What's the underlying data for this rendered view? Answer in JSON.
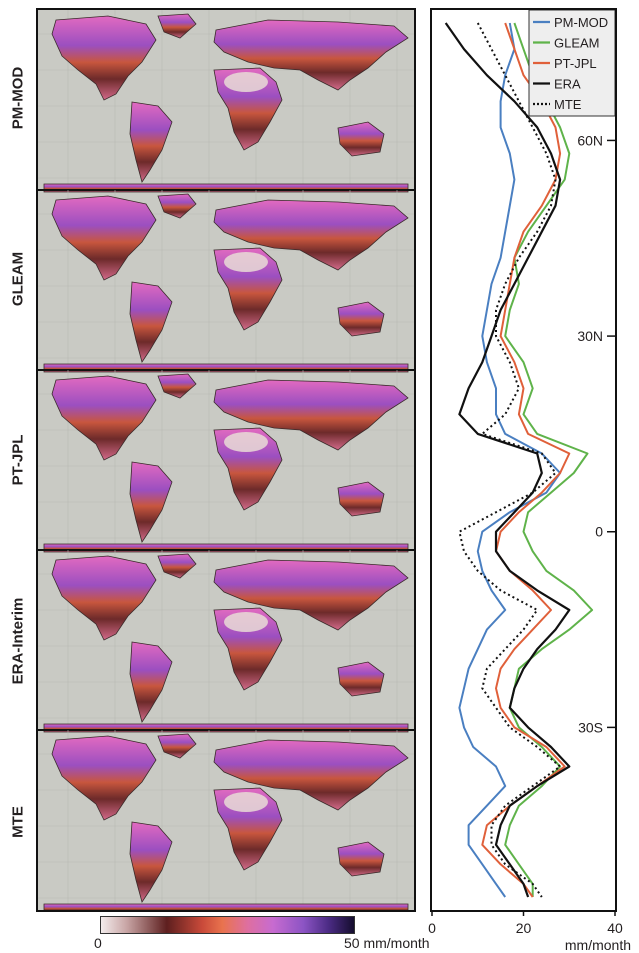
{
  "maps": {
    "labels": [
      "PM-MOD",
      "GLEAM",
      "PT-JPL",
      "ERA-Interim",
      "MTE"
    ],
    "ocean_color": "#c9cac4",
    "colorbar": {
      "min_label": "0",
      "max_label": "50 mm/month"
    }
  },
  "chart_data": {
    "type": "line",
    "orientation": "horizontal-profile",
    "xlabel": "mm/month",
    "xlim": [
      0,
      40
    ],
    "xticks": [
      "0",
      "20",
      "40"
    ],
    "ylim": [
      -58,
      80
    ],
    "yticks": [
      {
        "lat": 60,
        "label": "60N"
      },
      {
        "lat": 30,
        "label": "30N"
      },
      {
        "lat": 0,
        "label": "0"
      },
      {
        "lat": -30,
        "label": "30S"
      }
    ],
    "legend": "top-right",
    "series": [
      {
        "name": "PM-MOD",
        "color": "#4a7fc1",
        "style": "solid",
        "lat": [
          78,
          74,
          70,
          66,
          62,
          58,
          54,
          50,
          46,
          42,
          38,
          34,
          30,
          26,
          22,
          18,
          15,
          12,
          9,
          6,
          3,
          0,
          -3,
          -6,
          -9,
          -12,
          -15,
          -18,
          -21,
          -24,
          -27,
          -30,
          -33,
          -36,
          -39,
          -42,
          -45,
          -48,
          -51,
          -54,
          -56
        ],
        "et": [
          17,
          18,
          16,
          15,
          15,
          17,
          18,
          17,
          16,
          15,
          13,
          12,
          11,
          12,
          14,
          14,
          16,
          24,
          28,
          25,
          17,
          11,
          10,
          11,
          13,
          16,
          12,
          10,
          8,
          7,
          6,
          7,
          9,
          14,
          16,
          12,
          8,
          8,
          11,
          14,
          16
        ]
      },
      {
        "name": "GLEAM",
        "color": "#5fb34a",
        "style": "solid",
        "lat": [
          78,
          74,
          70,
          66,
          62,
          58,
          54,
          50,
          46,
          42,
          38,
          34,
          30,
          26,
          22,
          18,
          15,
          12,
          9,
          6,
          3,
          0,
          -3,
          -6,
          -9,
          -12,
          -15,
          -18,
          -21,
          -24,
          -27,
          -30,
          -33,
          -36,
          -39,
          -42,
          -45,
          -48,
          -51,
          -54,
          -56
        ],
        "et": [
          18,
          20,
          22,
          25,
          28,
          30,
          29,
          25,
          21,
          18,
          19,
          17,
          16,
          20,
          22,
          20,
          23,
          34,
          31,
          26,
          21,
          20,
          22,
          25,
          31,
          35,
          30,
          24,
          19,
          18,
          17,
          19,
          24,
          28,
          24,
          19,
          17,
          16,
          19,
          22,
          22
        ]
      },
      {
        "name": "PT-JPL",
        "color": "#e0603a",
        "style": "solid",
        "lat": [
          78,
          74,
          70,
          66,
          62,
          58,
          54,
          50,
          46,
          42,
          38,
          34,
          30,
          26,
          22,
          18,
          15,
          12,
          9,
          6,
          3,
          0,
          -3,
          -6,
          -9,
          -12,
          -15,
          -18,
          -21,
          -24,
          -27,
          -30,
          -33,
          -36,
          -39,
          -42,
          -45,
          -48,
          -51,
          -54,
          -56
        ],
        "et": [
          16,
          18,
          20,
          24,
          27,
          28,
          27,
          24,
          20,
          18,
          17,
          16,
          15,
          18,
          20,
          19,
          21,
          30,
          28,
          24,
          19,
          15,
          14,
          17,
          22,
          26,
          22,
          18,
          15,
          14,
          15,
          18,
          25,
          29,
          23,
          17,
          12,
          11,
          15,
          20,
          22
        ]
      },
      {
        "name": "ERA",
        "color": "#111111",
        "style": "solid",
        "lat": [
          78,
          74,
          70,
          66,
          62,
          58,
          54,
          50,
          46,
          42,
          38,
          34,
          30,
          26,
          22,
          18,
          15,
          12,
          9,
          6,
          3,
          0,
          -3,
          -6,
          -9,
          -12,
          -15,
          -18,
          -21,
          -24,
          -27,
          -30,
          -33,
          -36,
          -39,
          -42,
          -45,
          -48,
          -51,
          -54,
          -56
        ],
        "et": [
          3,
          7,
          12,
          18,
          23,
          26,
          28,
          27,
          24,
          21,
          18,
          15,
          13,
          11,
          8,
          6,
          10,
          23,
          24,
          22,
          18,
          14,
          14,
          17,
          23,
          30,
          27,
          23,
          20,
          18,
          17,
          21,
          26,
          30,
          23,
          17,
          15,
          14,
          17,
          20,
          21
        ]
      },
      {
        "name": "MTE",
        "color": "#111111",
        "style": "dotted",
        "lat": [
          78,
          74,
          70,
          66,
          62,
          58,
          54,
          50,
          46,
          42,
          38,
          34,
          30,
          26,
          22,
          18,
          15,
          12,
          9,
          6,
          3,
          0,
          -3,
          -6,
          -9,
          -12,
          -15,
          -18,
          -21,
          -24,
          -27,
          -30,
          -33,
          -36,
          -39,
          -42,
          -45,
          -48,
          -51,
          -54,
          -56
        ],
        "et": [
          10,
          13,
          16,
          19,
          22,
          25,
          27,
          26,
          23,
          19,
          16,
          14,
          14,
          17,
          19,
          16,
          11,
          24,
          27,
          22,
          14,
          6,
          7,
          10,
          15,
          23,
          20,
          16,
          12,
          11,
          14,
          17,
          23,
          28,
          22,
          16,
          13,
          13,
          16,
          22,
          24
        ]
      }
    ]
  }
}
